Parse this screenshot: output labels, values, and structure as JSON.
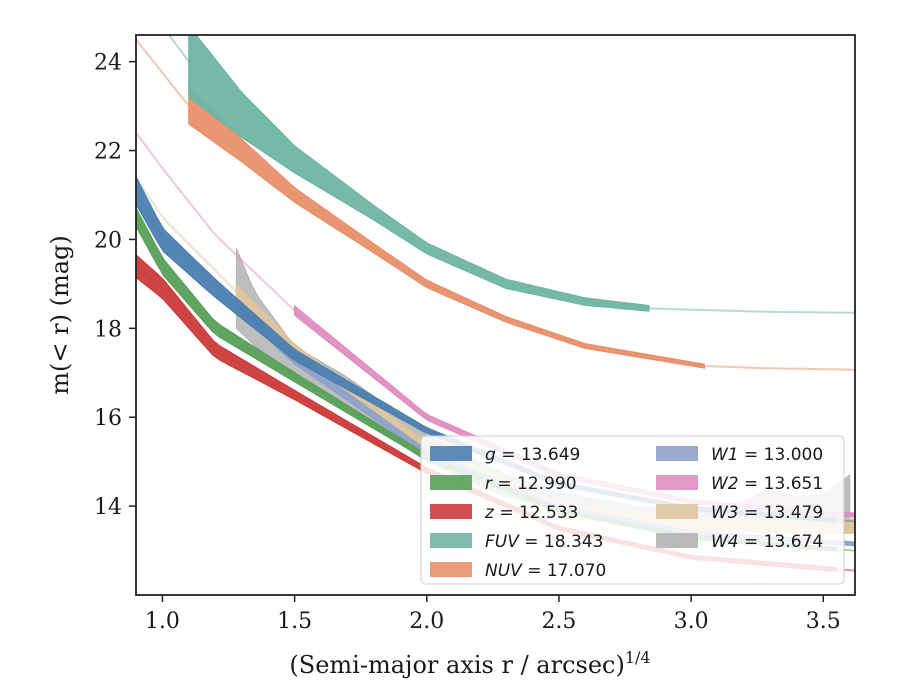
{
  "chart_data": {
    "type": "line",
    "xlabel": "(Semi-major axis r / arcsec)",
    "xlabel_sup": "1/4",
    "ylabel": "m(< r) (mag)",
    "xlim": [
      0.9,
      3.62
    ],
    "ylim": [
      24.6,
      12.0
    ],
    "y_inverted": true,
    "x_ticks": [
      1.0,
      1.5,
      2.0,
      2.5,
      3.0,
      3.5
    ],
    "x_tick_labels": [
      "1.0",
      "1.5",
      "2.0",
      "2.5",
      "3.0",
      "3.5"
    ],
    "y_ticks": [
      14,
      16,
      18,
      20,
      22,
      24
    ],
    "y_tick_labels": [
      "14",
      "16",
      "18",
      "20",
      "22",
      "24"
    ],
    "grid": false,
    "legend_position": "lower right",
    "legend_columns": 2,
    "series": [
      {
        "name": "g = 13.649",
        "band": "g",
        "color": "#4c7fb0",
        "x": [
          0.9,
          1.0,
          1.2,
          1.5,
          2.0,
          2.5,
          3.0,
          3.5,
          3.62
        ],
        "y": [
          21.1,
          20.0,
          18.9,
          17.4,
          15.7,
          14.5,
          13.95,
          13.7,
          13.66
        ],
        "band_width": [
          0.3,
          0.25,
          0.2,
          0.12,
          0.06,
          0.04,
          0.04,
          0.04,
          0.04
        ],
        "solid_until": 3.55
      },
      {
        "name": "r = 12.990",
        "band": "r",
        "color": "#5aa05a",
        "x": [
          0.9,
          1.0,
          1.2,
          1.5,
          2.0,
          2.5,
          3.0,
          3.5,
          3.62
        ],
        "y": [
          20.5,
          19.4,
          18.0,
          16.9,
          15.1,
          13.9,
          13.3,
          13.05,
          13.0
        ],
        "band_width": [
          0.2,
          0.18,
          0.14,
          0.1,
          0.06,
          0.04,
          0.04,
          0.04,
          0.04
        ],
        "solid_until": 3.55
      },
      {
        "name": "z = 12.533",
        "band": "z",
        "color": "#cc3b3b",
        "x": [
          0.9,
          1.0,
          1.2,
          1.5,
          2.0,
          2.5,
          3.0,
          3.5,
          3.62
        ],
        "y": [
          19.4,
          18.9,
          17.5,
          16.5,
          14.8,
          13.5,
          12.85,
          12.6,
          12.55
        ],
        "band_width": [
          0.25,
          0.22,
          0.16,
          0.1,
          0.06,
          0.04,
          0.04,
          0.04,
          0.04
        ],
        "solid_until": 3.55
      },
      {
        "name": "FUV = 18.343",
        "band": "FUV",
        "color": "#6fb5a3",
        "x": [
          0.9,
          1.1,
          1.3,
          1.5,
          1.8,
          2.0,
          2.3,
          2.6,
          2.84,
          3.0,
          3.3,
          3.62
        ],
        "y": [
          25.6,
          24.0,
          22.8,
          21.8,
          20.6,
          19.8,
          19.0,
          18.6,
          18.45,
          18.42,
          18.37,
          18.35
        ],
        "band_width": [
          0.4,
          0.8,
          0.5,
          0.3,
          0.16,
          0.12,
          0.1,
          0.08,
          0.06,
          0.04,
          0.04,
          0.04
        ],
        "solid_from": 1.1,
        "solid_until": 2.84
      },
      {
        "name": "NUV = 17.070",
        "band": "NUV",
        "color": "#e8906c",
        "x": [
          0.9,
          1.1,
          1.3,
          1.5,
          1.8,
          2.0,
          2.3,
          2.6,
          3.05,
          3.3,
          3.62
        ],
        "y": [
          24.5,
          23.0,
          22.0,
          21.0,
          19.8,
          19.0,
          18.2,
          17.6,
          17.15,
          17.1,
          17.07
        ],
        "band_width": [
          0.3,
          0.4,
          0.25,
          0.16,
          0.1,
          0.08,
          0.06,
          0.05,
          0.04,
          0.04,
          0.04
        ],
        "solid_from": 1.1,
        "solid_until": 3.05
      },
      {
        "name": "W1 = 13.000",
        "band": "W1",
        "color": "#8fa2c8",
        "x": [
          0.9,
          1.0,
          1.2,
          1.5,
          2.0,
          2.5,
          3.0,
          3.5,
          3.62
        ],
        "y": [
          20.8,
          20.1,
          19.0,
          17.3,
          15.2,
          13.95,
          13.4,
          13.2,
          13.15
        ],
        "band_width": [
          0.2,
          0.18,
          0.14,
          0.1,
          0.06,
          0.05,
          0.04,
          0.04,
          0.04
        ],
        "solid_from": 1.28,
        "solid_until": 3.62
      },
      {
        "name": "W2 = 13.651",
        "band": "W2",
        "color": "#df8fc0",
        "x": [
          0.9,
          1.0,
          1.2,
          1.5,
          2.0,
          2.5,
          3.0,
          3.5,
          3.62
        ],
        "y": [
          22.4,
          21.6,
          20.1,
          18.4,
          16.0,
          14.7,
          14.1,
          13.85,
          13.8
        ],
        "band_width": [
          0.2,
          0.18,
          0.14,
          0.1,
          0.06,
          0.05,
          0.04,
          0.04,
          0.04
        ],
        "solid_from": 1.5,
        "solid_until": 3.62
      },
      {
        "name": "W3 = 13.479",
        "band": "W3",
        "color": "#dec59e",
        "x": [
          0.9,
          1.0,
          1.2,
          1.5,
          2.0,
          2.5,
          3.0,
          3.5,
          3.62
        ],
        "y": [
          21.4,
          20.5,
          19.3,
          17.5,
          15.3,
          13.95,
          13.6,
          13.55,
          13.55
        ],
        "band_width": [
          0.2,
          0.18,
          0.16,
          0.14,
          0.12,
          0.12,
          0.14,
          0.16,
          0.16
        ],
        "solid_from": 1.28,
        "solid_until": 3.62
      },
      {
        "name": "W4 = 13.674",
        "band": "W4",
        "color": "#b3b3b3",
        "x": [
          1.28,
          1.35,
          1.5,
          1.7,
          2.0,
          2.3,
          2.5,
          2.8,
          3.0,
          3.2,
          3.3,
          3.4,
          3.5,
          3.6
        ],
        "y_upper": [
          18.0,
          17.6,
          16.9,
          16.2,
          15.0,
          14.2,
          13.9,
          13.6,
          13.5,
          13.45,
          13.5,
          13.4,
          13.55,
          13.4
        ],
        "y_lower": [
          19.8,
          18.8,
          17.6,
          16.9,
          15.6,
          14.7,
          14.3,
          14.0,
          13.9,
          14.1,
          14.4,
          14.2,
          14.25,
          14.7
        ],
        "envelope": true
      }
    ]
  }
}
